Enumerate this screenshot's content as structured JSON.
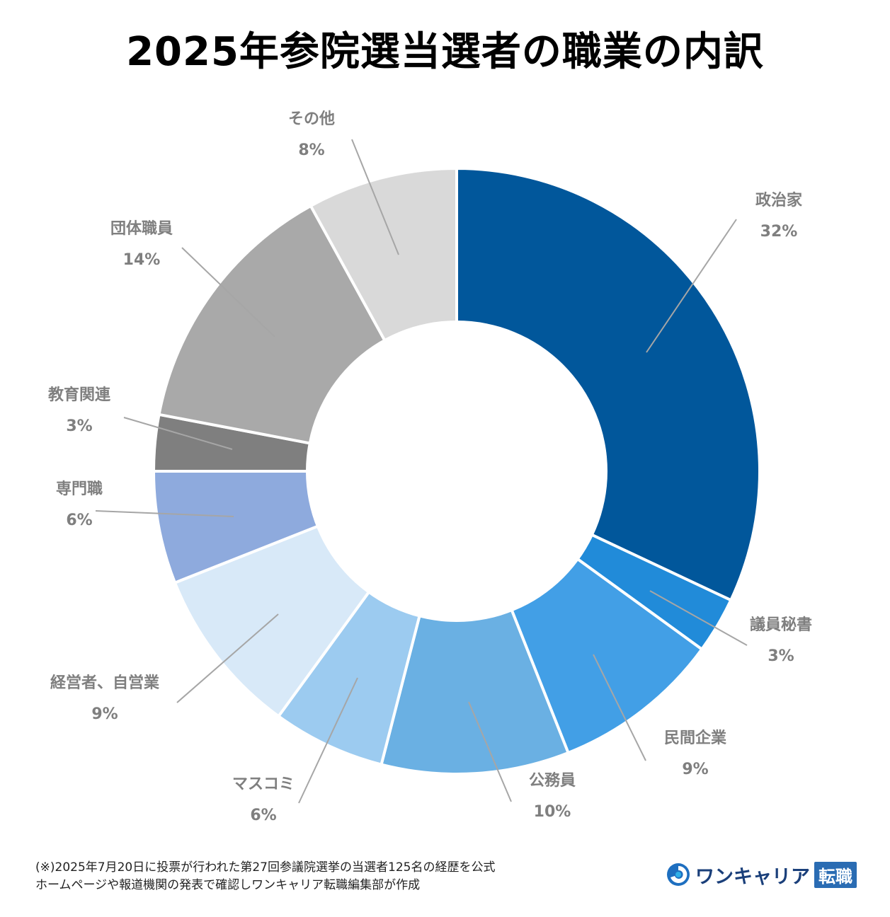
{
  "chart_data": {
    "type": "donut",
    "title": "2025年参院選当選者の職業の内訳",
    "slices": [
      {
        "label": "政治家",
        "value": 32,
        "display": "32%",
        "color": "#01579b"
      },
      {
        "label": "議員秘書",
        "value": 3,
        "display": "3%",
        "color": "#218bd9"
      },
      {
        "label": "民間企業",
        "value": 9,
        "display": "9%",
        "color": "#429fe6"
      },
      {
        "label": "公務員",
        "value": 10,
        "display": "10%",
        "color": "#6ab0e3"
      },
      {
        "label": "マスコミ",
        "value": 6,
        "display": "6%",
        "color": "#9ccbf0"
      },
      {
        "label": "経営者、自営業",
        "value": 9,
        "display": "9%",
        "color": "#d8e9f8"
      },
      {
        "label": "専門職",
        "value": 6,
        "display": "6%",
        "color": "#8eaadd"
      },
      {
        "label": "教育関連",
        "value": 3,
        "display": "3%",
        "color": "#7f7f7f"
      },
      {
        "label": "団体職員",
        "value": 14,
        "display": "14%",
        "color": "#a9a9a9"
      },
      {
        "label": "その他",
        "value": 8,
        "display": "8%",
        "color": "#d9d9d9"
      }
    ]
  },
  "footnote": {
    "line1": "(※)2025年7月20日に投票が行われた第27回参議院選挙の当選者125名の経歴を公式",
    "line2": "ホームページや報道機関の発表で確認しワンキャリア転職編集部が作成"
  },
  "brand": {
    "name": "ワンキャリア",
    "tag": "転職",
    "logo_icon": "swirl-logo-icon"
  }
}
